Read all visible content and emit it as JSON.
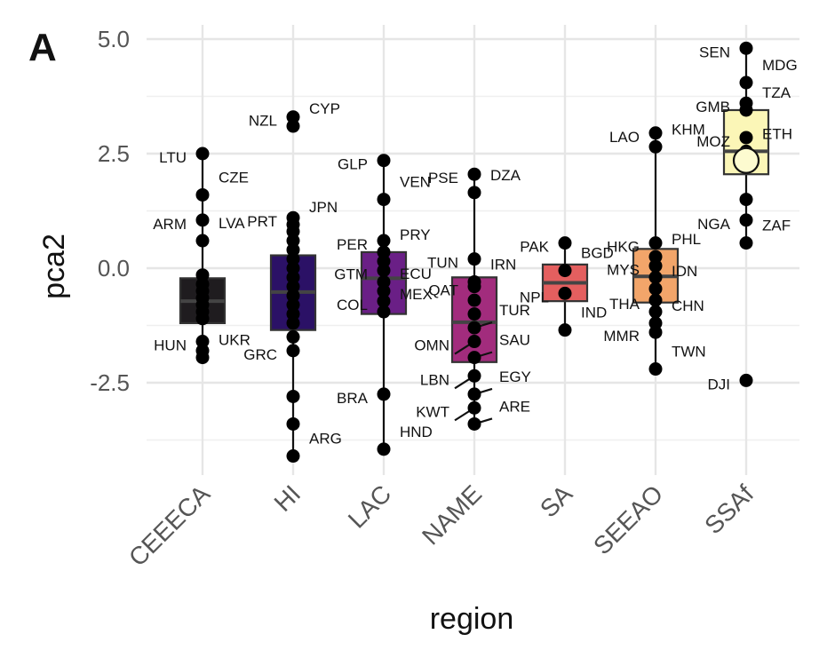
{
  "panel_letter": "A",
  "chart_data": {
    "type": "box",
    "xlabel": "region",
    "ylabel": "pca2",
    "ylim": [
      -4.6,
      5.2
    ],
    "yticks": [
      5.0,
      2.5,
      0.0,
      -2.5
    ],
    "ytick_labels": [
      "5.0",
      "2.5",
      "0.0",
      "-2.5"
    ],
    "grid": true,
    "legend": "none",
    "categories": [
      "CEEECA",
      "HI",
      "LAC",
      "NAME",
      "SA",
      "SEEAO",
      "SSAf"
    ],
    "colors": [
      "#1f1c1f",
      "#2b1166",
      "#6a1f86",
      "#a22c7d",
      "#e45f5f",
      "#f2a56a",
      "#fbf6b7"
    ],
    "boxes": [
      {
        "q1": -1.2,
        "median": -0.72,
        "q3": -0.22,
        "whisker_low": -2.0,
        "whisker_high": 2.5
      },
      {
        "q1": -1.35,
        "median": -0.52,
        "q3": 0.28,
        "whisker_low": -4.1,
        "whisker_high": 1.15
      },
      {
        "q1": -1.0,
        "median": -0.22,
        "q3": 0.35,
        "whisker_low": -3.95,
        "whisker_high": 2.35
      },
      {
        "q1": -2.05,
        "median": -1.18,
        "q3": -0.2,
        "whisker_low": -3.4,
        "whisker_high": 2.05
      },
      {
        "q1": -0.72,
        "median": -0.32,
        "q3": 0.08,
        "whisker_low": -1.35,
        "whisker_high": 0.55
      },
      {
        "q1": -0.75,
        "median": -0.18,
        "q3": 0.42,
        "whisker_low": -2.2,
        "whisker_high": 2.95
      },
      {
        "q1": 2.05,
        "median": 2.55,
        "q3": 3.45,
        "whisker_low": 0.55,
        "whisker_high": 4.8
      }
    ],
    "mean_markers": [
      {
        "category": "SSAf",
        "value": 2.35
      }
    ],
    "points": [
      {
        "category": "CEEECA",
        "label": "LTU",
        "y": 2.5
      },
      {
        "category": "CEEECA",
        "label": "CZE",
        "y": 1.6
      },
      {
        "category": "CEEECA",
        "label": "ARM",
        "y": 1.05
      },
      {
        "category": "CEEECA",
        "label": "LVA",
        "y": 0.6
      },
      {
        "category": "CEEECA",
        "label": "",
        "y": -0.15
      },
      {
        "category": "CEEECA",
        "label": "",
        "y": -0.35
      },
      {
        "category": "CEEECA",
        "label": "",
        "y": -0.5
      },
      {
        "category": "CEEECA",
        "label": "",
        "y": -0.65
      },
      {
        "category": "CEEECA",
        "label": "",
        "y": -0.8
      },
      {
        "category": "CEEECA",
        "label": "",
        "y": -0.95
      },
      {
        "category": "CEEECA",
        "label": "",
        "y": -1.1
      },
      {
        "category": "CEEECA",
        "label": "HUN",
        "y": -1.6
      },
      {
        "category": "CEEECA",
        "label": "",
        "y": -1.8
      },
      {
        "category": "CEEECA",
        "label": "UKR",
        "y": -1.95
      },
      {
        "category": "HI",
        "label": "NZL",
        "y": 3.3
      },
      {
        "category": "HI",
        "label": "CYP",
        "y": 3.1
      },
      {
        "category": "HI",
        "label": "PRT",
        "y": 1.1
      },
      {
        "category": "HI",
        "label": "JPN",
        "y": 0.95
      },
      {
        "category": "HI",
        "label": "",
        "y": 0.8
      },
      {
        "category": "HI",
        "label": "",
        "y": 0.6
      },
      {
        "category": "HI",
        "label": "",
        "y": 0.4
      },
      {
        "category": "HI",
        "label": "",
        "y": 0.2
      },
      {
        "category": "HI",
        "label": "",
        "y": 0.0
      },
      {
        "category": "HI",
        "label": "",
        "y": -0.2
      },
      {
        "category": "HI",
        "label": "",
        "y": -0.4
      },
      {
        "category": "HI",
        "label": "",
        "y": -0.6
      },
      {
        "category": "HI",
        "label": "",
        "y": -0.8
      },
      {
        "category": "HI",
        "label": "",
        "y": -1.0
      },
      {
        "category": "HI",
        "label": "",
        "y": -1.2
      },
      {
        "category": "HI",
        "label": "",
        "y": -1.5
      },
      {
        "category": "HI",
        "label": "GRC",
        "y": -1.8
      },
      {
        "category": "HI",
        "label": "",
        "y": -2.8
      },
      {
        "category": "HI",
        "label": "",
        "y": -3.4
      },
      {
        "category": "HI",
        "label": "ARG",
        "y": -4.1
      },
      {
        "category": "LAC",
        "label": "GLP",
        "y": 2.35
      },
      {
        "category": "LAC",
        "label": "VEN",
        "y": 1.5
      },
      {
        "category": "LAC",
        "label": "PER",
        "y": 0.6
      },
      {
        "category": "LAC",
        "label": "PRY",
        "y": 0.35
      },
      {
        "category": "LAC",
        "label": "",
        "y": 0.15
      },
      {
        "category": "LAC",
        "label": "GTM",
        "y": -0.05
      },
      {
        "category": "LAC",
        "label": "",
        "y": -0.3
      },
      {
        "category": "LAC",
        "label": "ECU",
        "y": -0.5
      },
      {
        "category": "LAC",
        "label": "COL",
        "y": -0.72
      },
      {
        "category": "LAC",
        "label": "MEX",
        "y": -0.95
      },
      {
        "category": "LAC",
        "label": "BRA",
        "y": -2.75
      },
      {
        "category": "LAC",
        "label": "HND",
        "y": -3.95
      },
      {
        "category": "NAME",
        "label": "PSE",
        "y": 2.05
      },
      {
        "category": "NAME",
        "label": "DZA",
        "y": 1.65
      },
      {
        "category": "NAME",
        "label": "TUN",
        "y": 0.2
      },
      {
        "category": "NAME",
        "label": "IRN",
        "y": -0.3
      },
      {
        "category": "NAME",
        "label": "QAT",
        "y": -0.4
      },
      {
        "category": "NAME",
        "label": "",
        "y": -0.7
      },
      {
        "category": "NAME",
        "label": "",
        "y": -1.0
      },
      {
        "category": "NAME",
        "label": "TUR",
        "y": -1.3
      },
      {
        "category": "NAME",
        "label": "OMN",
        "y": -1.6
      },
      {
        "category": "NAME",
        "label": "SAU",
        "y": -1.95
      },
      {
        "category": "NAME",
        "label": "LBN",
        "y": -2.35
      },
      {
        "category": "NAME",
        "label": "EGY",
        "y": -2.75
      },
      {
        "category": "NAME",
        "label": "KWT",
        "y": -3.05
      },
      {
        "category": "NAME",
        "label": "ARE",
        "y": -3.4
      },
      {
        "category": "SA",
        "label": "PAK",
        "y": 0.55
      },
      {
        "category": "SA",
        "label": "BGD",
        "y": -0.05
      },
      {
        "category": "SA",
        "label": "NPL",
        "y": -0.55
      },
      {
        "category": "SA",
        "label": "IND",
        "y": -1.35
      },
      {
        "category": "SEEAO",
        "label": "LAO",
        "y": 2.95
      },
      {
        "category": "SEEAO",
        "label": "KHM",
        "y": 2.65
      },
      {
        "category": "SEEAO",
        "label": "HKG",
        "y": 0.55
      },
      {
        "category": "SEEAO",
        "label": "PHL",
        "y": 0.25
      },
      {
        "category": "SEEAO",
        "label": "MYS",
        "y": 0.05
      },
      {
        "category": "SEEAO",
        "label": "",
        "y": -0.2
      },
      {
        "category": "SEEAO",
        "label": "IDN",
        "y": -0.45
      },
      {
        "category": "SEEAO",
        "label": "THA",
        "y": -0.7
      },
      {
        "category": "SEEAO",
        "label": "",
        "y": -0.95
      },
      {
        "category": "SEEAO",
        "label": "CHN",
        "y": -1.2
      },
      {
        "category": "SEEAO",
        "label": "MMR",
        "y": -1.4
      },
      {
        "category": "SEEAO",
        "label": "TWN",
        "y": -2.2
      },
      {
        "category": "SSAf",
        "label": "SEN",
        "y": 4.8
      },
      {
        "category": "SSAf",
        "label": "MDG",
        "y": 4.05
      },
      {
        "category": "SSAf",
        "label": "GMB",
        "y": 3.6
      },
      {
        "category": "SSAf",
        "label": "TZA",
        "y": 3.45
      },
      {
        "category": "SSAf",
        "label": "MOZ",
        "y": 2.85
      },
      {
        "category": "SSAf",
        "label": "ETH",
        "y": 2.55
      },
      {
        "category": "SSAf",
        "label": "",
        "y": 1.5
      },
      {
        "category": "SSAf",
        "label": "NGA",
        "y": 1.05
      },
      {
        "category": "SSAf",
        "label": "ZAF",
        "y": 0.55
      },
      {
        "category": "SSAf",
        "label": "DJI",
        "y": -2.45
      }
    ]
  }
}
